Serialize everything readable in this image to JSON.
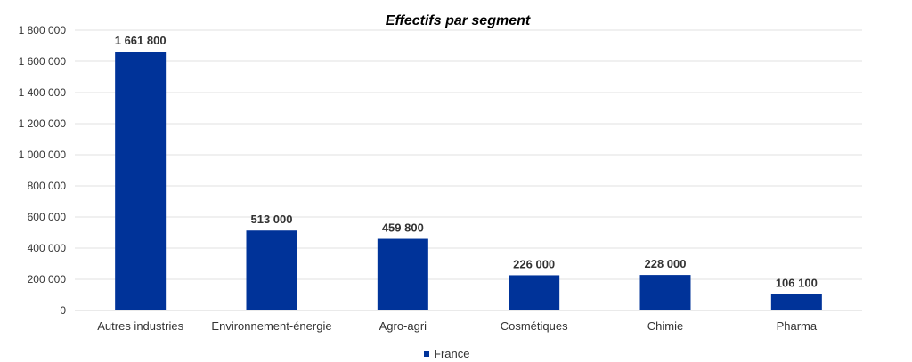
{
  "chart_data": {
    "type": "bar",
    "title": "Effectifs par segment",
    "xlabel": "",
    "ylabel": "",
    "categories": [
      "Autres industries",
      "Environnement-énergie",
      "Agro-agri",
      "Cosmétiques",
      "Chimie",
      "Pharma"
    ],
    "series": [
      {
        "name": "France",
        "values": [
          1661800,
          513000,
          459800,
          226000,
          228000,
          106100
        ],
        "data_labels": [
          "1 661 800",
          "513 000",
          "459 800",
          "226 000",
          "228 000",
          "106 100"
        ],
        "color": "#003399"
      }
    ],
    "ylim": [
      0,
      1800000
    ],
    "yticks": [
      0,
      200000,
      400000,
      600000,
      800000,
      1000000,
      1200000,
      1400000,
      1600000,
      1800000
    ],
    "ytick_labels": [
      "0",
      "200 000",
      "400 000",
      "600 000",
      "800 000",
      "1 000 000",
      "1 200 000",
      "1 400 000",
      "1 600 000",
      "1 800 000"
    ],
    "grid": true,
    "legend": {
      "position": "bottom",
      "entries": [
        "France"
      ]
    }
  }
}
